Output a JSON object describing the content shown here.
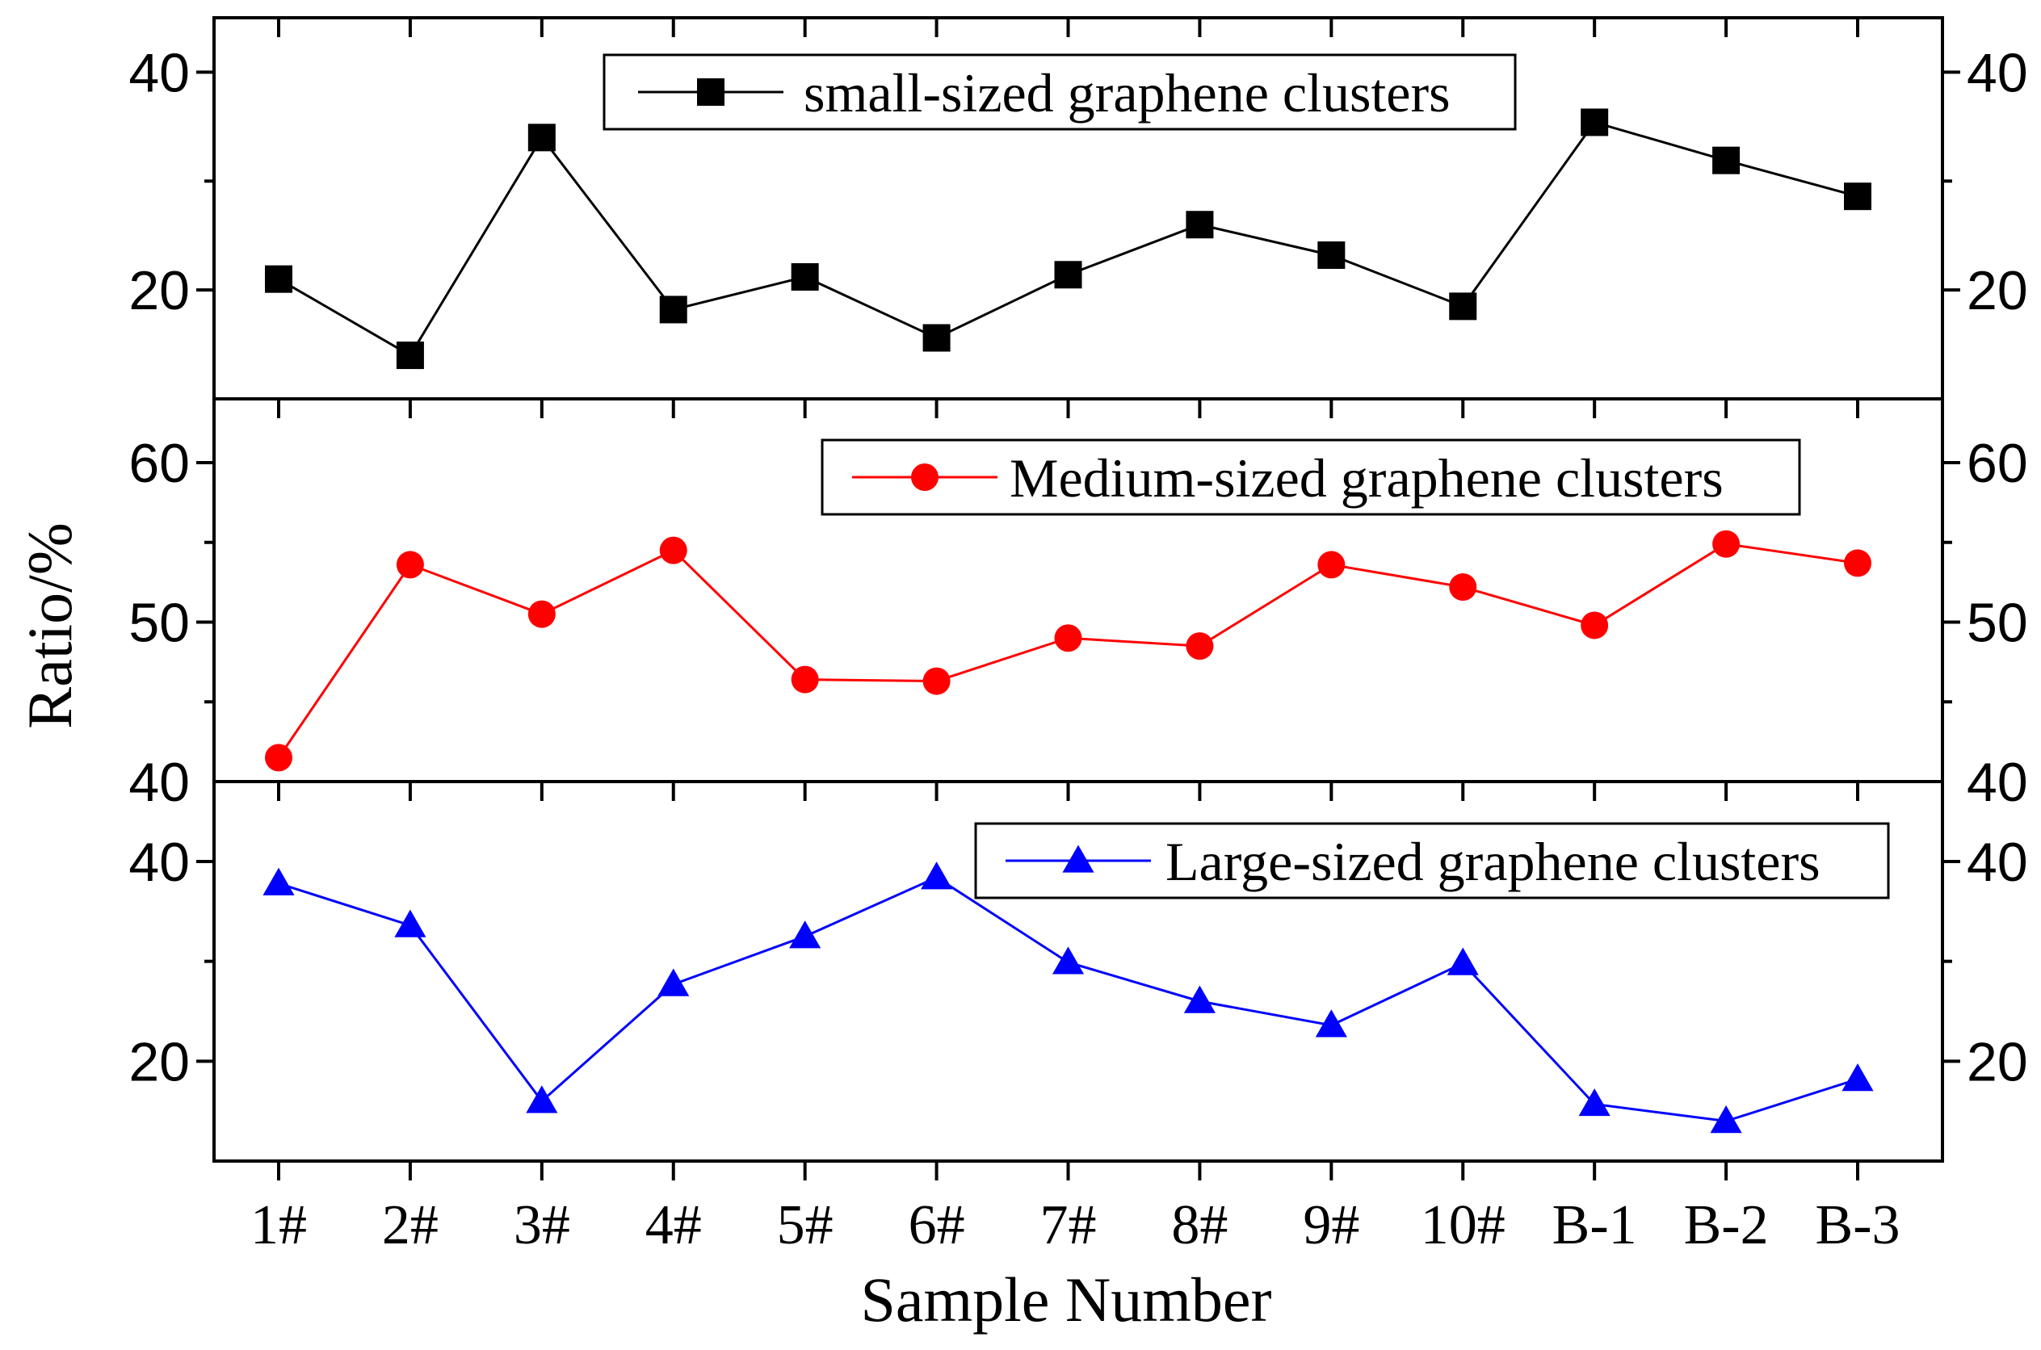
{
  "chart_data": {
    "type": "line",
    "layout": "stacked-panels",
    "categories": [
      "1#",
      "2#",
      "3#",
      "4#",
      "5#",
      "6#",
      "7#",
      "8#",
      "9#",
      "10#",
      "B-1",
      "B-2",
      "B-3"
    ],
    "xlabel": "Sample Number",
    "ylabel": "Ratio/%",
    "panels": [
      {
        "name": "small",
        "legend": "small-sized graphene clusters",
        "color": "#000000",
        "marker": "square",
        "ylim": [
          10,
          45
        ],
        "yticks": [
          20,
          40
        ],
        "values": [
          21.0,
          14.0,
          34.0,
          18.2,
          21.2,
          15.6,
          21.4,
          26.0,
          23.2,
          18.5,
          35.4,
          31.9,
          28.6
        ]
      },
      {
        "name": "medium",
        "legend": "Medium-sized graphene clusters",
        "color": "#ff0000",
        "marker": "circle",
        "ylim": [
          40,
          64
        ],
        "yticks": [
          40,
          50,
          60
        ],
        "values": [
          41.5,
          53.6,
          50.5,
          54.5,
          46.4,
          46.3,
          49.0,
          48.5,
          53.6,
          52.2,
          49.8,
          54.9,
          53.7
        ]
      },
      {
        "name": "large",
        "legend": "Large-sized graphene clusters",
        "color": "#0000ff",
        "marker": "triangle",
        "ylim": [
          10,
          48
        ],
        "yticks": [
          20,
          40
        ],
        "values": [
          37.8,
          33.6,
          16.0,
          27.7,
          32.5,
          38.4,
          29.9,
          26.0,
          23.6,
          29.8,
          15.7,
          14.0,
          18.2
        ]
      }
    ]
  }
}
